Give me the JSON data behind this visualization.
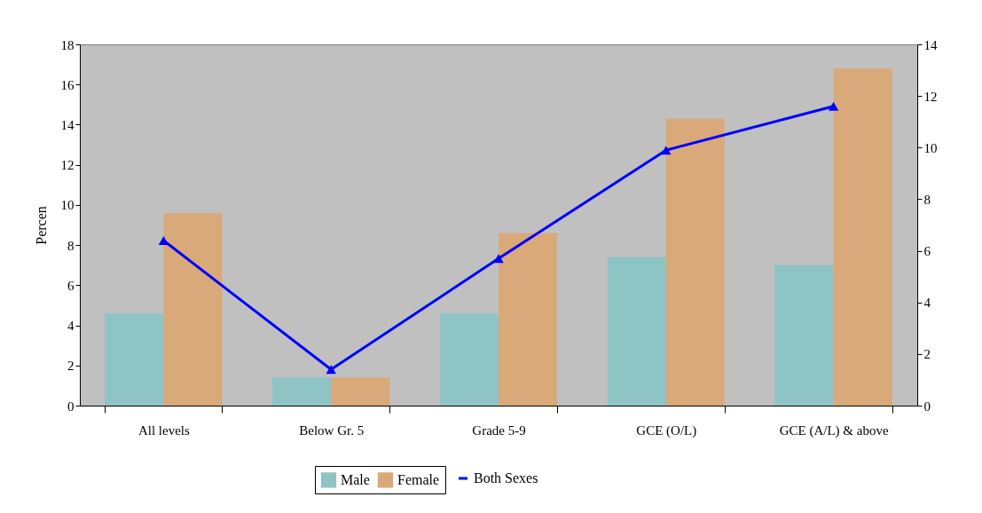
{
  "chart_data": {
    "type": "bar",
    "ylabel": "Percen",
    "categories": [
      "All levels",
      "Below Gr. 5",
      "Grade 5-9",
      "GCE (O/L)",
      "GCE (A/L) & above"
    ],
    "series": [
      {
        "name": "Male",
        "color": "#8fc4c4",
        "values": [
          4.6,
          1.4,
          4.6,
          7.4,
          7.0
        ]
      },
      {
        "name": "Female",
        "color": "#d9a97a",
        "values": [
          9.6,
          1.4,
          8.6,
          14.3,
          16.8
        ]
      },
      {
        "name": "Both Sexes",
        "type": "line",
        "axis": "y2",
        "color": "#0000ff",
        "marker": "triangle",
        "values": [
          6.4,
          1.4,
          5.7,
          9.9,
          11.6
        ]
      }
    ],
    "ylim": [
      0,
      18
    ],
    "yticks": [
      0,
      2,
      4,
      6,
      8,
      10,
      12,
      14,
      16,
      18
    ],
    "y2lim": [
      0,
      14
    ],
    "y2ticks": [
      0,
      2,
      4,
      6,
      8,
      10,
      12,
      14
    ],
    "grid": false,
    "legend": "bottom"
  }
}
